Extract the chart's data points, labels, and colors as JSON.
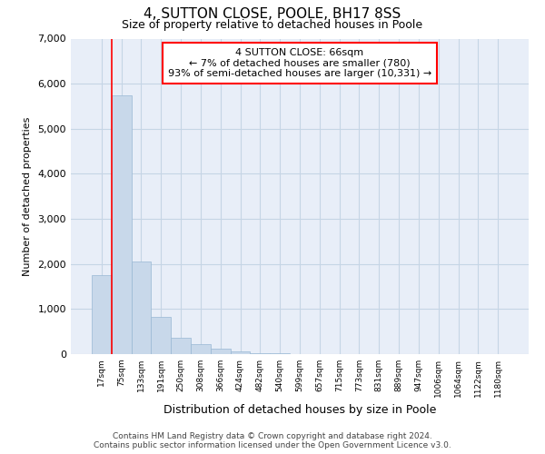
{
  "title": "4, SUTTON CLOSE, POOLE, BH17 8SS",
  "subtitle": "Size of property relative to detached houses in Poole",
  "xlabel": "Distribution of detached houses by size in Poole",
  "ylabel": "Number of detached properties",
  "bar_color": "#c8d8ea",
  "bar_edge_color": "#99b8d4",
  "grid_color": "#c5d5e5",
  "background_color": "#e8eef8",
  "categories": [
    "17sqm",
    "75sqm",
    "133sqm",
    "191sqm",
    "250sqm",
    "308sqm",
    "366sqm",
    "424sqm",
    "482sqm",
    "540sqm",
    "599sqm",
    "657sqm",
    "715sqm",
    "773sqm",
    "831sqm",
    "889sqm",
    "947sqm",
    "1006sqm",
    "1064sqm",
    "1122sqm",
    "1180sqm"
  ],
  "values": [
    1750,
    5750,
    2050,
    820,
    370,
    230,
    120,
    70,
    30,
    15,
    5,
    2,
    0,
    0,
    0,
    0,
    0,
    0,
    0,
    0,
    0
  ],
  "annotation_text": "4 SUTTON CLOSE: 66sqm\n← 7% of detached houses are smaller (780)\n93% of semi-detached houses are larger (10,331) →",
  "ylim": [
    0,
    7000
  ],
  "yticks": [
    0,
    1000,
    2000,
    3000,
    4000,
    5000,
    6000,
    7000
  ],
  "vline_x": 1.0,
  "footer_line1": "Contains HM Land Registry data © Crown copyright and database right 2024.",
  "footer_line2": "Contains public sector information licensed under the Open Government Licence v3.0."
}
